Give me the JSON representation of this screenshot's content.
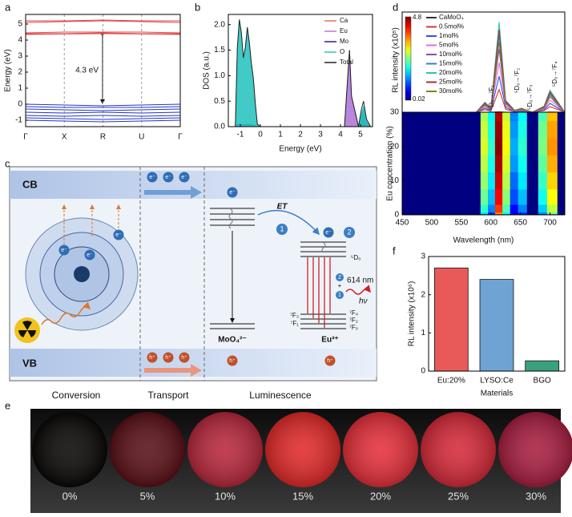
{
  "panel_labels": [
    "a",
    "b",
    "c",
    "d",
    "e",
    "f"
  ],
  "chart_data": [
    {
      "type": "band",
      "ylabel": "Energy (eV)",
      "annotation": "4.3 eV",
      "categories": [
        "Γ",
        "X",
        "R",
        "U",
        "Γ"
      ],
      "ylim": [
        -1.4,
        5.6
      ],
      "yticks": [
        -1,
        0,
        1,
        2,
        3,
        4,
        5
      ],
      "series": [
        {
          "color": "#e04848",
          "values": [
            5.2,
            5.2,
            5.25,
            5.2,
            5.2
          ]
        },
        {
          "color": "#e04848",
          "values": [
            5.1,
            5.15,
            5.2,
            5.15,
            5.1
          ]
        },
        {
          "color": "#e04848",
          "values": [
            4.45,
            4.5,
            4.5,
            4.5,
            4.45
          ]
        },
        {
          "color": "#e04848",
          "values": [
            4.4,
            4.4,
            4.45,
            4.4,
            4.4
          ]
        },
        {
          "color": "#e04848",
          "values": [
            4.35,
            4.38,
            4.4,
            4.38,
            4.35
          ]
        },
        {
          "color": "#2434c8",
          "values": [
            0,
            -0.05,
            -0.1,
            -0.05,
            0
          ]
        },
        {
          "color": "#2434c8",
          "values": [
            -0.15,
            -0.2,
            -0.2,
            -0.2,
            -0.15
          ]
        },
        {
          "color": "#2434c8",
          "values": [
            -0.3,
            -0.35,
            -0.4,
            -0.35,
            -0.3
          ]
        },
        {
          "color": "#2434c8",
          "values": [
            -0.5,
            -0.55,
            -0.5,
            -0.55,
            -0.5
          ]
        },
        {
          "color": "#2434c8",
          "values": [
            -0.7,
            -0.75,
            -0.7,
            -0.75,
            -0.7
          ]
        },
        {
          "color": "#2434c8",
          "values": [
            -0.85,
            -0.9,
            -0.95,
            -0.9,
            -0.85
          ]
        },
        {
          "color": "#2434c8",
          "values": [
            -1.0,
            -1.05,
            -1.1,
            -1.05,
            -1.0
          ]
        }
      ]
    },
    {
      "type": "area",
      "xlabel": "Energy (eV)",
      "ylabel": "DOS (a.u.)",
      "xlim": [
        -1.6,
        5.6
      ],
      "xticks": [
        -1,
        0,
        1,
        2,
        3,
        4,
        5
      ],
      "ylim": [
        0,
        2.2
      ],
      "yticks": [
        {
          "value": 0,
          "label": "0.0"
        },
        {
          "value": 0.5,
          "label": "0.5"
        },
        {
          "value": 1,
          "label": "1.0"
        },
        {
          "value": 1.5,
          "label": "1.5"
        },
        {
          "value": 2,
          "label": "2.0"
        }
      ],
      "x": [
        -1.5,
        -1.25,
        -1.15,
        -1.05,
        -0.95,
        -0.85,
        -0.75,
        -0.65,
        -0.55,
        -0.45,
        -0.35,
        -0.25,
        -0.15,
        0,
        2,
        4.2,
        4.35,
        4.45,
        4.55,
        4.9,
        5.05,
        5.15,
        5.3,
        5.5
      ],
      "series": [
        {
          "name": "Ca",
          "color": "#e06a6a",
          "values": [
            0,
            0,
            0,
            0,
            0,
            0,
            0,
            0,
            0,
            0,
            0,
            0,
            0,
            0,
            0,
            0,
            0,
            0,
            0,
            0,
            0.03,
            0.05,
            0.02,
            0
          ]
        },
        {
          "name": "Eu",
          "color": "#b07ad8",
          "values": [
            0,
            0,
            0,
            0,
            0,
            0,
            0,
            0,
            0,
            0,
            0,
            0,
            0,
            0,
            0,
            0,
            0.9,
            1.5,
            0.6,
            0,
            0,
            0,
            0,
            0
          ]
        },
        {
          "name": "Mo",
          "color": "#22229a",
          "values": [
            0,
            0,
            0.05,
            0.05,
            0.05,
            0.04,
            0.04,
            0.05,
            0.05,
            0.04,
            0.03,
            0.02,
            0,
            0,
            0,
            0,
            0,
            0,
            0,
            0,
            0.2,
            0.35,
            0.1,
            0
          ]
        },
        {
          "name": "O",
          "color": "#2ec4c0",
          "values": [
            0,
            0,
            1.5,
            2.05,
            1.8,
            1.3,
            1.5,
            1.9,
            1.6,
            1.2,
            0.9,
            0.4,
            0.05,
            0,
            0,
            0,
            0,
            0,
            0,
            0,
            0.25,
            0.4,
            0.1,
            0
          ]
        },
        {
          "name": "Total",
          "color": "#222222",
          "values": [
            0,
            0,
            1.55,
            2.1,
            1.85,
            1.35,
            1.55,
            1.95,
            1.65,
            1.25,
            0.95,
            0.45,
            0.05,
            0,
            0,
            0,
            0.9,
            1.5,
            0.6,
            0,
            0.35,
            0.5,
            0.15,
            0
          ]
        }
      ]
    },
    {
      "type": "spectra-map",
      "xlabel": "Wavelength (nm)",
      "ylabel": "RL intensity (x10⁵)",
      "xlim": [
        450,
        725
      ],
      "xticks": [
        450,
        500,
        550,
        600,
        650,
        700
      ],
      "ylim": [
        0,
        5
      ],
      "annotations": [
        "⁵D₀→⁷F₁",
        "⁵D₀→⁷F₂",
        "⁵D₀→⁷F₃",
        "⁵D₀→⁷F₄"
      ],
      "x": [
        450,
        500,
        550,
        575,
        590,
        600,
        614,
        625,
        640,
        652,
        670,
        690,
        700,
        725
      ],
      "series": [
        {
          "name": "CaMoO₄",
          "color": "#333333",
          "values": [
            0,
            0,
            0,
            0,
            0,
            0,
            0.02,
            0,
            0,
            0,
            0,
            0,
            0.01,
            0
          ]
        },
        {
          "name": "0.5mol%",
          "color": "#e03030",
          "values": [
            0,
            0,
            0,
            0,
            0.13,
            0.05,
            1.13,
            0.15,
            0.03,
            0.05,
            0,
            0.08,
            0.28,
            0
          ]
        },
        {
          "name": "1mol%",
          "color": "#3050e0",
          "values": [
            0,
            0,
            0,
            0,
            0.2,
            0.08,
            1.8,
            0.24,
            0.04,
            0.08,
            0,
            0.12,
            0.44,
            0
          ]
        },
        {
          "name": "5mol%",
          "color": "#e070d0",
          "values": [
            0,
            0,
            0,
            0,
            0.28,
            0.11,
            2.48,
            0.33,
            0.06,
            0.11,
            0,
            0.17,
            0.61,
            0
          ]
        },
        {
          "name": "10mol%",
          "color": "#8050b0",
          "values": [
            0,
            0,
            0,
            0,
            0.35,
            0.14,
            3.15,
            0.42,
            0.07,
            0.14,
            0,
            0.21,
            0.77,
            0
          ]
        },
        {
          "name": "15mol%",
          "color": "#3080c0",
          "values": [
            0,
            0,
            0,
            0,
            0.43,
            0.17,
            3.83,
            0.51,
            0.09,
            0.17,
            0,
            0.26,
            0.94,
            0
          ]
        },
        {
          "name": "20mol%",
          "color": "#2ec4b0",
          "values": [
            0,
            0,
            0,
            0,
            0.5,
            0.2,
            4.5,
            0.6,
            0.1,
            0.2,
            0,
            0.3,
            1.1,
            0
          ]
        },
        {
          "name": "25mol%",
          "color": "#a03040",
          "values": [
            0,
            0,
            0,
            0,
            0.46,
            0.18,
            4.14,
            0.55,
            0.09,
            0.18,
            0,
            0.28,
            1.01,
            0
          ]
        },
        {
          "name": "30mol%",
          "color": "#808020",
          "values": [
            0,
            0,
            0,
            0,
            0.39,
            0.16,
            3.51,
            0.47,
            0.08,
            0.16,
            0,
            0.23,
            0.86,
            0
          ]
        }
      ],
      "heatmap": {
        "ylabel": "Eu concentration (%)",
        "ylim": [
          0,
          30
        ],
        "yticks": [
          0,
          10,
          20,
          30
        ],
        "y": [
          0,
          0.5,
          1,
          5,
          10,
          15,
          20,
          25,
          30
        ],
        "clim": [
          0.02,
          4.8
        ],
        "log_color": true
      }
    },
    {
      "type": "bar",
      "xlabel": "Materials",
      "ylabel": "RL intensity (x10⁶)",
      "categories": [
        "Eu:20%",
        "LYSO:Ce",
        "BGO"
      ],
      "values": [
        2.7,
        2.4,
        0.27
      ],
      "colors": [
        "#e85a5a",
        "#6fa3d4",
        "#3aa07e"
      ],
      "ylim": [
        0,
        3
      ],
      "yticks": [
        0,
        1,
        2,
        3
      ]
    }
  ],
  "diagram": {
    "cb": "CB",
    "vb": "VB",
    "electron": "e⁻",
    "hole": "h⁺",
    "et": "ET",
    "step1": "1",
    "step2": "2",
    "plus": "+",
    "emission": "614 nm",
    "photon": "hν",
    "host": "MoO₄²⁻",
    "ion": "Eu³⁺",
    "d0": "⁵D₀",
    "f4": "⁷F₄",
    "f2": "⁷F₂",
    "f0": "⁷F₀",
    "f3": "⁷F₃",
    "f1": "⁷F₁",
    "stages": [
      "Conversion",
      "Transport",
      "Luminescence"
    ]
  },
  "photos": [
    {
      "label": "0%",
      "color": "#0b0707"
    },
    {
      "label": "5%",
      "color": "#5a1018"
    },
    {
      "label": "10%",
      "color": "#b8283c"
    },
    {
      "label": "15%",
      "color": "#e22a2a"
    },
    {
      "label": "20%",
      "color": "#e6303a"
    },
    {
      "label": "25%",
      "color": "#d62a3a"
    },
    {
      "label": "30%",
      "color": "#a81e40"
    }
  ]
}
